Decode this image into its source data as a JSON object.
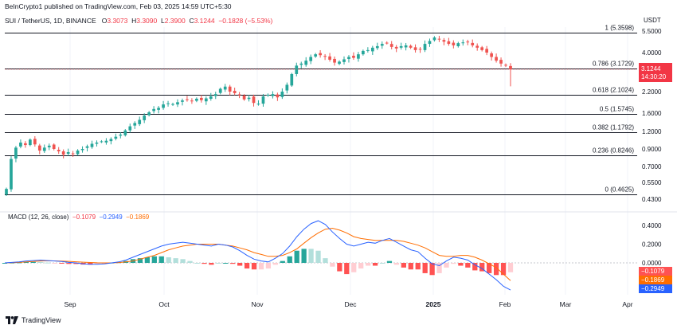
{
  "header": {
    "published": "BeInCrypto1 published on TradingView.com, Feb 03, 2025 14:59 UTC+5:30",
    "symbol": "SUI / TetherUS, 1D, BINANCE",
    "o_label": "O",
    "o_value": "3.3073",
    "h_label": "H",
    "h_value": "3.3090",
    "l_label": "L",
    "l_value": "2.3900",
    "c_label": "C",
    "c_value": "3.1244",
    "change": "−0.1828 (−5.53%)",
    "currency": "USDT"
  },
  "colors": {
    "up": "#26a69a",
    "down": "#ef5350",
    "macd": "#2962ff",
    "signal": "#ff6d00",
    "hist_up_strong": "#26a69a",
    "hist_up_weak": "#b2dfdb",
    "hist_down_strong": "#ff5252",
    "hist_down_weak": "#ffcdd2",
    "price_tag": "#f23645",
    "fib_line": "#131722",
    "grid": "#f0f3fa"
  },
  "price_axis": {
    "ticks": [
      "5.5000",
      "4.0000",
      "2.2000",
      "1.6000",
      "1.2000",
      "0.9000",
      "0.7000",
      "0.5500",
      "0.4300"
    ],
    "current_price": "3.1244",
    "countdown": "14:30:20"
  },
  "fib_levels": [
    {
      "label": "1 (5.3598)",
      "value": 5.3598
    },
    {
      "label": "0.786 (3.1729)",
      "value": 3.1729
    },
    {
      "label": "0.618 (2.1024)",
      "value": 2.1024
    },
    {
      "label": "0.5 (1.5745)",
      "value": 1.5745
    },
    {
      "label": "0.382 (1.1792)",
      "value": 1.1792
    },
    {
      "label": "0.236 (0.8246)",
      "value": 0.8246
    },
    {
      "label": "0 (0.4625)",
      "value": 0.4625
    }
  ],
  "macd": {
    "title": "MACD (12, 26, close)",
    "v1": "−0.1079",
    "v2": "−0.2949",
    "v3": "−0.1869",
    "axis_ticks": [
      "0.4000",
      "0.2000",
      "0.0000"
    ],
    "tags": [
      "−0.1079",
      "−0.1869",
      "−0.2949"
    ]
  },
  "time_axis": {
    "labels": [
      "Sep",
      "Oct",
      "Nov",
      "Dec",
      "2025",
      "Feb",
      "Mar",
      "Apr"
    ]
  },
  "footer": {
    "brand": "TradingView"
  },
  "chart_data": {
    "type": "candlestick",
    "title": "SUI / TetherUS, 1D, BINANCE",
    "scale": "log",
    "ylim": [
      0.4,
      5.8
    ],
    "series": [
      {
        "name": "price (approx. closes)",
        "values": [
          0.5,
          0.78,
          0.92,
          1.0,
          0.96,
          1.05,
          0.97,
          0.88,
          0.92,
          0.95,
          0.9,
          0.87,
          0.83,
          0.86,
          0.84,
          0.88,
          0.9,
          0.94,
          0.98,
          1.0,
          1.02,
          1.03,
          1.06,
          1.1,
          1.14,
          1.22,
          1.3,
          1.37,
          1.44,
          1.54,
          1.62,
          1.7,
          1.73,
          1.82,
          1.85,
          1.83,
          1.88,
          1.93,
          1.95,
          1.92,
          1.98,
          1.94,
          1.99,
          2.05,
          2.12,
          2.3,
          2.38,
          2.2,
          2.15,
          2.09,
          1.96,
          2.01,
          1.86,
          1.84,
          2.05,
          2.1,
          2.12,
          2.02,
          2.2,
          2.45,
          2.9,
          3.3,
          3.4,
          3.55,
          3.75,
          3.9,
          3.85,
          3.78,
          3.6,
          3.45,
          3.5,
          3.62,
          3.75,
          3.7,
          3.9,
          4.1,
          4.15,
          4.3,
          4.4,
          4.55,
          4.6,
          4.35,
          4.25,
          4.4,
          4.45,
          4.3,
          4.15,
          4.2,
          4.55,
          4.75,
          5.0,
          4.85,
          4.7,
          4.55,
          4.45,
          4.6,
          4.65,
          4.7,
          4.45,
          4.3,
          4.15,
          4.0,
          3.75,
          3.55,
          3.4,
          3.3,
          3.12
        ]
      },
      {
        "name": "MACD",
        "values": [
          0.0,
          0.005,
          0.01,
          0.02,
          0.025,
          0.03,
          0.025,
          0.02,
          0.015,
          0.005,
          0.0,
          -0.01,
          -0.015,
          -0.015,
          -0.01,
          0.0,
          0.01,
          0.03,
          0.06,
          0.09,
          0.12,
          0.15,
          0.18,
          0.2,
          0.21,
          0.22,
          0.21,
          0.2,
          0.19,
          0.18,
          0.2,
          0.19,
          0.17,
          0.13,
          0.08,
          0.04,
          0.02,
          0.01,
          0.05,
          0.1,
          0.18,
          0.28,
          0.36,
          0.42,
          0.45,
          0.41,
          0.33,
          0.26,
          0.2,
          0.18,
          0.2,
          0.22,
          0.21,
          0.24,
          0.26,
          0.22,
          0.18,
          0.14,
          0.12,
          0.05,
          -0.01,
          -0.03,
          0.02,
          0.06,
          0.05,
          0.03,
          -0.02,
          -0.06,
          -0.12,
          -0.18,
          -0.25,
          -0.29
        ]
      },
      {
        "name": "Signal",
        "values": [
          0.0,
          0.002,
          0.005,
          0.01,
          0.015,
          0.02,
          0.022,
          0.021,
          0.019,
          0.016,
          0.012,
          0.008,
          0.004,
          0.001,
          0.0,
          0.0,
          0.003,
          0.01,
          0.02,
          0.04,
          0.06,
          0.08,
          0.11,
          0.14,
          0.16,
          0.18,
          0.19,
          0.2,
          0.2,
          0.2,
          0.2,
          0.19,
          0.18,
          0.16,
          0.14,
          0.11,
          0.09,
          0.07,
          0.07,
          0.08,
          0.11,
          0.15,
          0.21,
          0.27,
          0.32,
          0.36,
          0.37,
          0.35,
          0.32,
          0.28,
          0.26,
          0.25,
          0.24,
          0.24,
          0.24,
          0.24,
          0.23,
          0.21,
          0.19,
          0.16,
          0.12,
          0.08,
          0.07,
          0.07,
          0.08,
          0.08,
          0.06,
          0.03,
          -0.01,
          -0.05,
          -0.12,
          -0.19
        ]
      }
    ]
  }
}
